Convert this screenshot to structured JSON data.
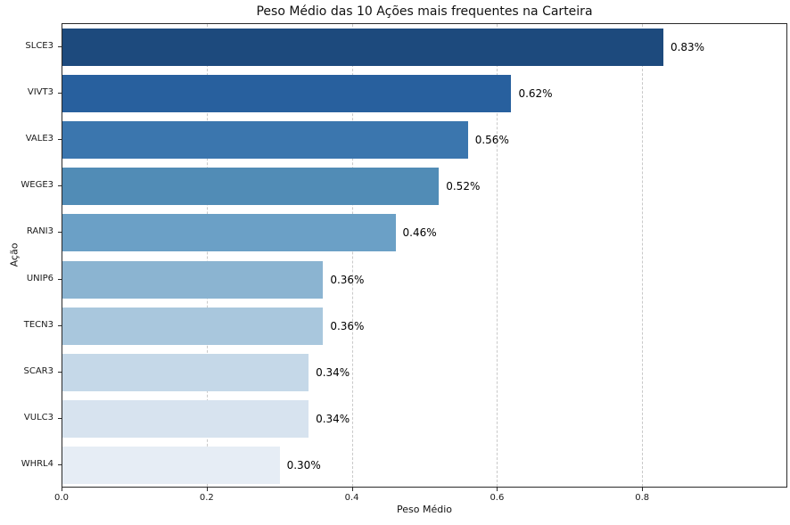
{
  "chart_data": {
    "type": "bar",
    "orientation": "horizontal",
    "title": "Peso Médio das 10 Ações mais frequentes na Carteira",
    "xlabel": "Peso Médio",
    "ylabel": "Ação",
    "categories": [
      "SLCE3",
      "VIVT3",
      "VALE3",
      "WEGE3",
      "RANI3",
      "UNIP6",
      "TECN3",
      "SCAR3",
      "VULC3",
      "WHRL4"
    ],
    "values": [
      0.83,
      0.62,
      0.56,
      0.52,
      0.46,
      0.36,
      0.36,
      0.34,
      0.34,
      0.3
    ],
    "value_labels": [
      "0.83%",
      "0.62%",
      "0.56%",
      "0.52%",
      "0.46%",
      "0.36%",
      "0.36%",
      "0.34%",
      "0.34%",
      "0.30%"
    ],
    "bar_colors": [
      "#1d4a7d",
      "#28609e",
      "#3b76ae",
      "#518cb6",
      "#6ba0c6",
      "#8bb4d1",
      "#a9c7dd",
      "#c5d8e8",
      "#d7e3ef",
      "#e6edf5"
    ],
    "xlim": [
      0,
      1.0
    ],
    "xticks": [
      "0.0",
      "0.2",
      "0.4",
      "0.6",
      "0.8"
    ],
    "xtick_values": [
      0.0,
      0.2,
      0.4,
      0.6,
      0.8
    ],
    "grid": "vertical-dashed",
    "grid_color": "#c9c9c9",
    "background_color": "#ffffff",
    "spine_color": "#2a2a2a"
  }
}
